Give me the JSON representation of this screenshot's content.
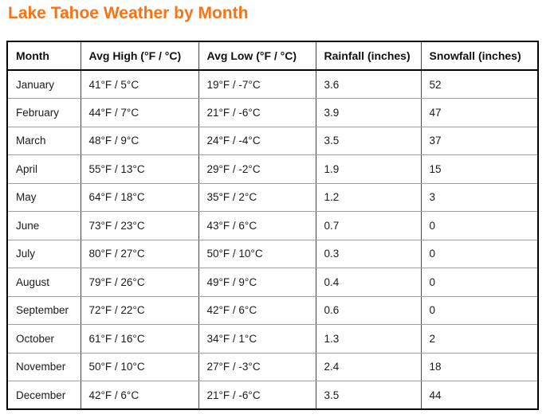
{
  "page": {
    "title": "Lake Tahoe Weather by Month",
    "title_color": "#f97316"
  },
  "table": {
    "columns": [
      "Month",
      "Avg High (°F / °C)",
      "Avg Low (°F / °C)",
      "Rainfall (inches)",
      "Snowfall (inches)"
    ],
    "rows": [
      [
        "January",
        "41°F / 5°C",
        "19°F / -7°C",
        "3.6",
        "52"
      ],
      [
        "February",
        "44°F / 7°C",
        "21°F / -6°C",
        "3.9",
        "47"
      ],
      [
        "March",
        "48°F / 9°C",
        "24°F / -4°C",
        "3.5",
        "37"
      ],
      [
        "April",
        "55°F / 13°C",
        "29°F / -2°C",
        "1.9",
        "15"
      ],
      [
        "May",
        "64°F / 18°C",
        "35°F / 2°C",
        "1.2",
        "3"
      ],
      [
        "June",
        "73°F / 23°C",
        "43°F / 6°C",
        "0.7",
        "0"
      ],
      [
        "July",
        "80°F / 27°C",
        "50°F / 10°C",
        "0.3",
        "0"
      ],
      [
        "August",
        "79°F / 26°C",
        "49°F / 9°C",
        "0.4",
        "0"
      ],
      [
        "September",
        "72°F / 22°C",
        "42°F / 6°C",
        "0.6",
        "0"
      ],
      [
        "October",
        "61°F / 16°C",
        "34°F / 1°C",
        "1.3",
        "2"
      ],
      [
        "November",
        "50°F / 10°C",
        "27°F / -3°C",
        "2.4",
        "18"
      ],
      [
        "December",
        "42°F / 6°C",
        "21°F / -6°C",
        "3.5",
        "44"
      ]
    ]
  }
}
